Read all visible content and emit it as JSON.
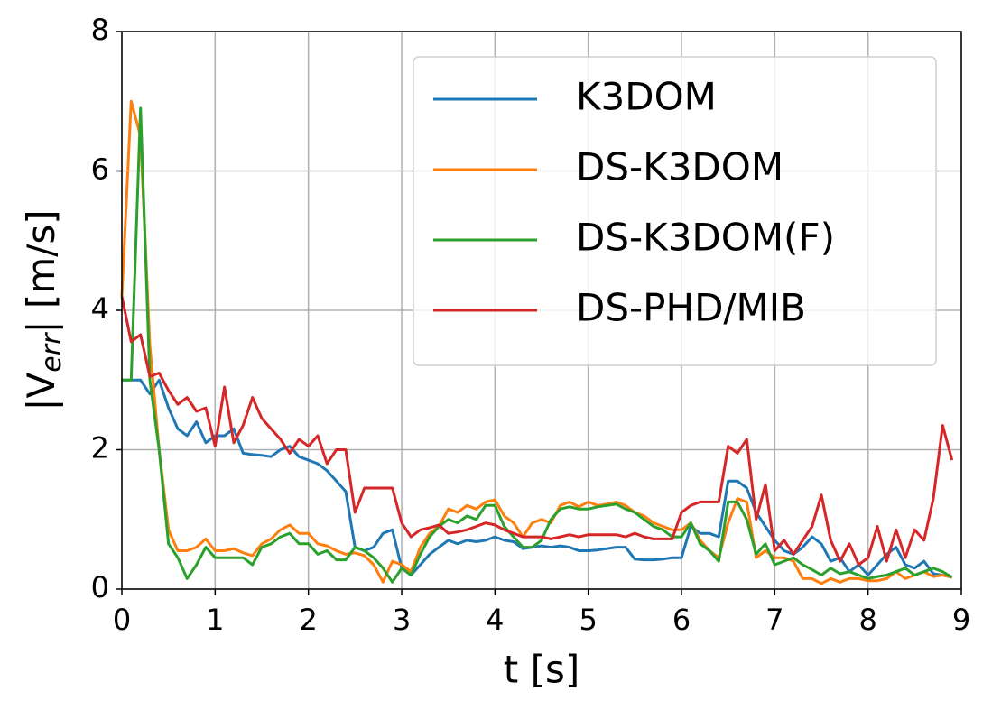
{
  "chart_data": {
    "type": "line",
    "xlabel": "t [s]",
    "ylabel": [
      "|V",
      "err",
      "| [m/s]"
    ],
    "x": [
      0,
      0.1,
      0.2,
      0.3,
      0.4,
      0.5,
      0.6,
      0.7,
      0.8,
      0.9,
      1,
      1.1,
      1.2,
      1.3,
      1.4,
      1.5,
      1.6,
      1.7,
      1.8,
      1.9,
      2,
      2.1,
      2.2,
      2.3,
      2.4,
      2.5,
      2.6,
      2.7,
      2.8,
      2.9,
      3,
      3.1,
      3.2,
      3.3,
      3.4,
      3.5,
      3.6,
      3.7,
      3.8,
      3.9,
      4,
      4.1,
      4.2,
      4.3,
      4.4,
      4.5,
      4.6,
      4.7,
      4.8,
      4.9,
      5,
      5.1,
      5.2,
      5.3,
      5.4,
      5.5,
      5.6,
      5.7,
      5.8,
      5.9,
      6,
      6.1,
      6.2,
      6.3,
      6.4,
      6.5,
      6.6,
      6.7,
      6.8,
      6.9,
      7,
      7.1,
      7.2,
      7.3,
      7.4,
      7.5,
      7.6,
      7.7,
      7.8,
      7.9,
      8,
      8.1,
      8.2,
      8.3,
      8.4,
      8.5,
      8.6,
      8.7,
      8.8,
      8.9
    ],
    "series": [
      {
        "name": "K3DOM",
        "color": "#1f77b4",
        "values": [
          3.0,
          3.0,
          3.0,
          2.8,
          3.0,
          2.6,
          2.3,
          2.2,
          2.4,
          2.1,
          2.2,
          2.2,
          2.3,
          1.95,
          1.93,
          1.92,
          1.9,
          2.0,
          2.05,
          1.9,
          1.85,
          1.8,
          1.7,
          1.55,
          1.4,
          0.6,
          0.55,
          0.6,
          0.8,
          0.85,
          0.3,
          0.2,
          0.35,
          0.5,
          0.6,
          0.7,
          0.65,
          0.7,
          0.68,
          0.7,
          0.75,
          0.7,
          0.68,
          0.58,
          0.6,
          0.62,
          0.6,
          0.62,
          0.6,
          0.55,
          0.55,
          0.56,
          0.58,
          0.6,
          0.6,
          0.43,
          0.42,
          0.42,
          0.43,
          0.45,
          0.45,
          0.9,
          0.8,
          0.8,
          0.75,
          1.55,
          1.55,
          1.45,
          1.1,
          0.9,
          0.7,
          0.55,
          0.5,
          0.6,
          0.75,
          0.65,
          0.4,
          0.45,
          0.25,
          0.35,
          0.2,
          0.35,
          0.5,
          0.6,
          0.35,
          0.3,
          0.4,
          0.22,
          0.2,
          0.17
        ]
      },
      {
        "name": "DS-K3DOM",
        "color": "#ff7f0e",
        "values": [
          4.2,
          7.0,
          6.5,
          3.5,
          2.0,
          0.85,
          0.55,
          0.55,
          0.6,
          0.72,
          0.55,
          0.55,
          0.58,
          0.52,
          0.48,
          0.65,
          0.72,
          0.85,
          0.92,
          0.8,
          0.8,
          0.65,
          0.62,
          0.55,
          0.5,
          0.52,
          0.48,
          0.35,
          0.1,
          0.4,
          0.35,
          0.25,
          0.6,
          0.8,
          0.9,
          1.15,
          1.1,
          1.2,
          1.15,
          1.25,
          1.28,
          1.05,
          0.95,
          0.75,
          0.95,
          1.0,
          0.95,
          1.2,
          1.25,
          1.18,
          1.25,
          1.2,
          1.22,
          1.25,
          1.2,
          1.1,
          1.05,
          0.95,
          0.9,
          0.85,
          0.85,
          0.95,
          0.7,
          0.55,
          0.45,
          0.95,
          1.3,
          1.25,
          0.45,
          0.55,
          0.45,
          0.45,
          0.4,
          0.15,
          0.15,
          0.08,
          0.15,
          0.1,
          0.15,
          0.15,
          0.12,
          0.12,
          0.15,
          0.25,
          0.15,
          0.2,
          0.25,
          0.18,
          0.2,
          0.17
        ]
      },
      {
        "name": "DS-K3DOM(F)",
        "color": "#2ca02c",
        "values": [
          3.0,
          3.0,
          6.9,
          3.0,
          2.0,
          0.65,
          0.45,
          0.15,
          0.35,
          0.6,
          0.45,
          0.45,
          0.45,
          0.45,
          0.35,
          0.6,
          0.65,
          0.75,
          0.8,
          0.65,
          0.65,
          0.5,
          0.55,
          0.42,
          0.42,
          0.6,
          0.55,
          0.45,
          0.3,
          0.1,
          0.3,
          0.2,
          0.5,
          0.75,
          0.9,
          1.0,
          0.95,
          1.05,
          1.0,
          1.2,
          1.2,
          0.9,
          0.75,
          0.6,
          0.6,
          0.7,
          1.0,
          1.15,
          1.18,
          1.15,
          1.15,
          1.18,
          1.2,
          1.22,
          1.15,
          1.1,
          1.0,
          0.9,
          0.85,
          0.75,
          0.75,
          0.95,
          0.65,
          0.55,
          0.4,
          1.25,
          1.25,
          1.0,
          0.5,
          0.65,
          0.35,
          0.4,
          0.45,
          0.35,
          0.28,
          0.2,
          0.3,
          0.22,
          0.25,
          0.2,
          0.15,
          0.18,
          0.2,
          0.25,
          0.3,
          0.2,
          0.25,
          0.3,
          0.25,
          0.17
        ]
      },
      {
        "name": "DS-PHD/MIB",
        "color": "#d62728",
        "values": [
          4.2,
          3.55,
          3.65,
          3.05,
          3.1,
          2.85,
          2.65,
          2.75,
          2.55,
          2.6,
          2.05,
          2.9,
          2.1,
          2.35,
          2.75,
          2.45,
          2.3,
          2.15,
          1.95,
          2.15,
          2.05,
          2.2,
          1.8,
          2.0,
          2.0,
          1.1,
          1.45,
          1.45,
          1.45,
          1.45,
          0.95,
          0.75,
          0.85,
          0.88,
          0.92,
          0.8,
          0.82,
          0.85,
          0.9,
          0.95,
          0.92,
          0.85,
          0.8,
          0.75,
          0.75,
          0.75,
          0.72,
          0.75,
          0.78,
          0.75,
          0.78,
          0.78,
          0.78,
          0.78,
          0.75,
          0.8,
          0.75,
          0.72,
          0.72,
          0.72,
          1.1,
          1.2,
          1.25,
          1.25,
          1.25,
          2.05,
          1.95,
          2.15,
          1.0,
          1.5,
          0.55,
          0.7,
          0.5,
          0.7,
          0.9,
          1.35,
          0.7,
          0.4,
          0.65,
          0.35,
          0.45,
          0.9,
          0.4,
          0.85,
          0.45,
          0.85,
          0.7,
          1.3,
          2.35,
          1.85
        ]
      }
    ],
    "xlim": [
      0,
      9
    ],
    "xticks": [
      0,
      1,
      2,
      3,
      4,
      5,
      6,
      7,
      8,
      9
    ],
    "ylim": [
      0,
      8
    ],
    "yticks": [
      0,
      2,
      4,
      6,
      8
    ],
    "grid": true,
    "legend": "upper right"
  }
}
